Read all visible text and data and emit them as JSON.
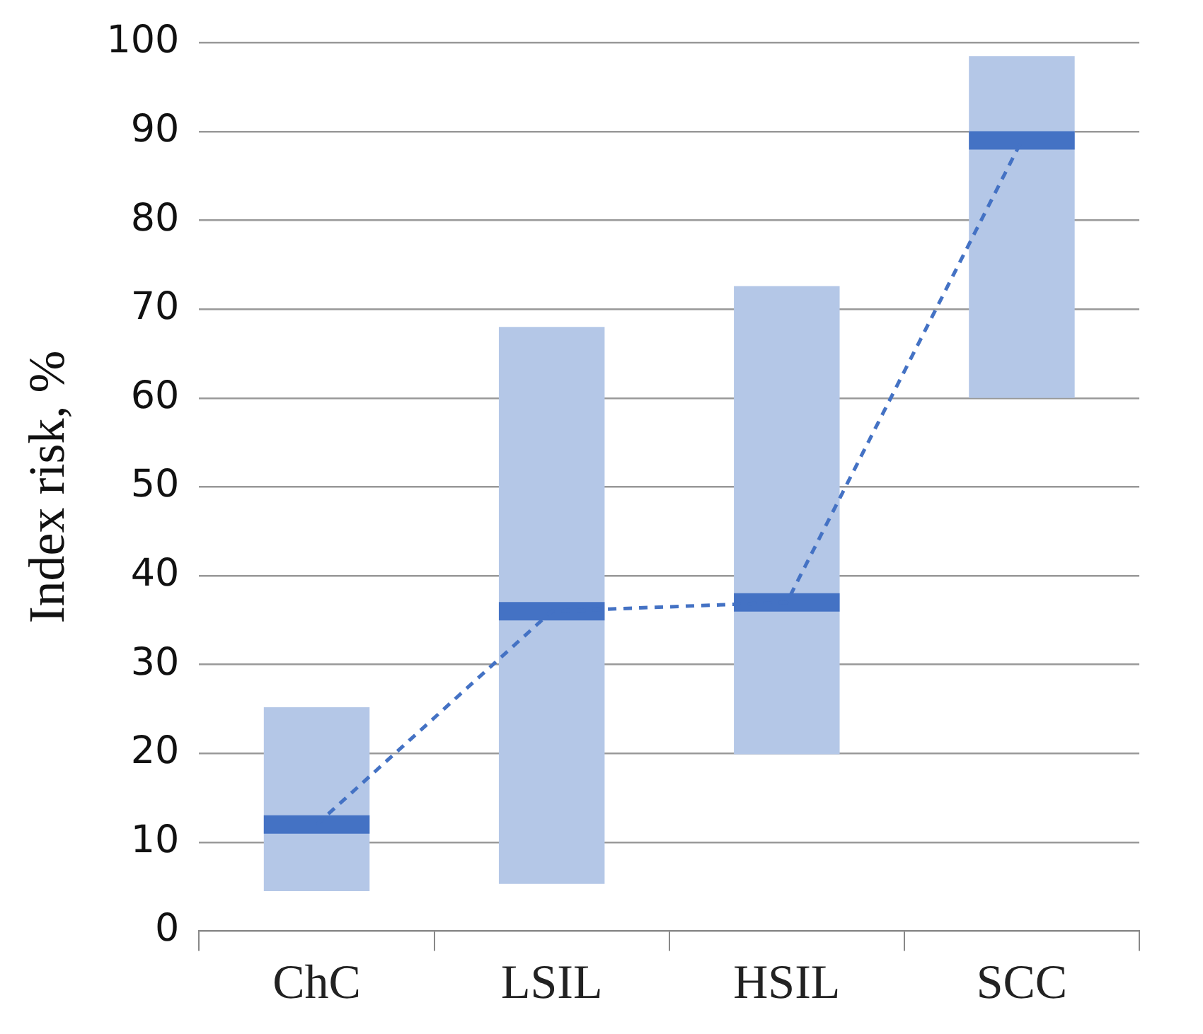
{
  "chart_data": {
    "type": "box",
    "ylabel": "Index risk, %",
    "categories": [
      "ChC",
      "LSIL",
      "HSIL",
      "SCC"
    ],
    "series": [
      {
        "color": "#b4c7e7",
        "boxes": [
          {
            "low": 4.5,
            "q1": 4.5,
            "median": 12,
            "q3": 25.2,
            "high": 25.2
          },
          {
            "low": 5.3,
            "q1": 5.3,
            "median": 36,
            "q3": 68,
            "high": 68
          },
          {
            "low": 19.9,
            "q1": 19.9,
            "median": 37,
            "q3": 72.6,
            "high": 72.6
          },
          {
            "low": 60,
            "q1": 60,
            "median": 89,
            "q3": 98.5,
            "high": 98.5
          }
        ]
      },
      {
        "type": "line",
        "color": "#4472c4",
        "values": [
          12,
          36,
          37,
          89
        ],
        "line_style": "dashed",
        "marker": "none"
      }
    ],
    "ylim": [
      0,
      100
    ],
    "yticks": [
      0,
      10,
      20,
      30,
      40,
      50,
      60,
      70,
      80,
      90,
      100
    ],
    "grid": "y"
  }
}
